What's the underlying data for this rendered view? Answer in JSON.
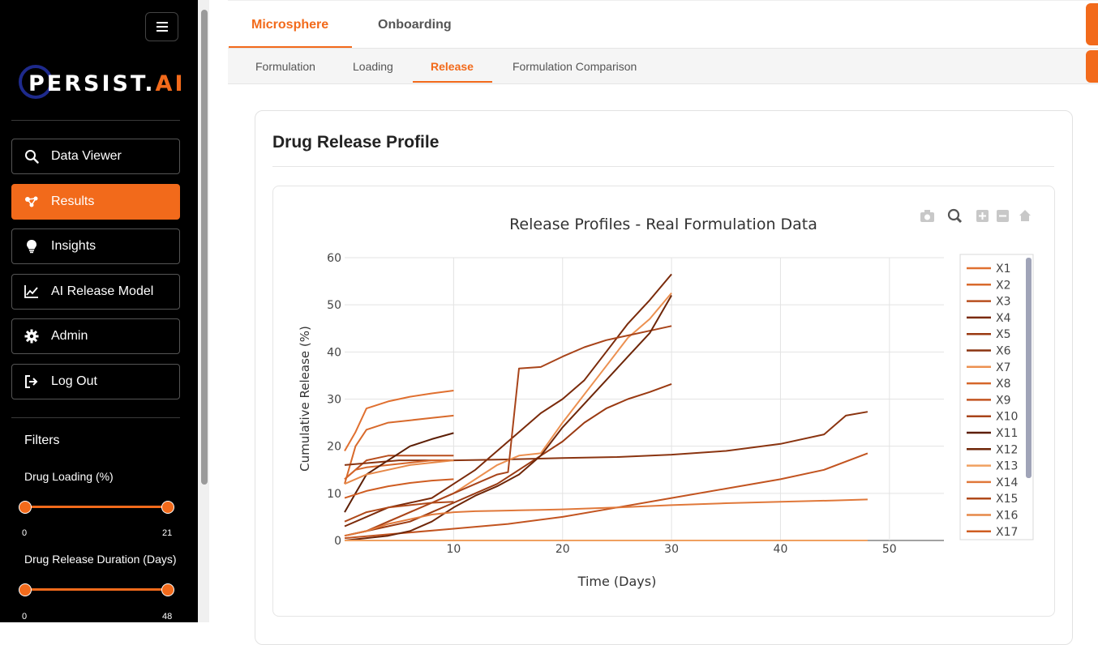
{
  "brand": {
    "name_main": "PERSIST.",
    "name_accent": "AI"
  },
  "sidebar": {
    "menu_icon": "hamburger-icon",
    "nav": [
      {
        "label": "Data Viewer",
        "icon": "search-icon"
      },
      {
        "label": "Results",
        "icon": "molecule-icon",
        "active": true
      },
      {
        "label": "Insights",
        "icon": "lightbulb-icon"
      },
      {
        "label": "AI Release Model",
        "icon": "line-chart-icon"
      },
      {
        "label": "Admin",
        "icon": "gear-icon"
      },
      {
        "label": "Log Out",
        "icon": "logout-icon"
      }
    ],
    "filters_title": "Filters",
    "filters": [
      {
        "label": "Drug Loading (%)",
        "min": "0",
        "max": "21"
      },
      {
        "label": "Drug Release Duration (Days)",
        "min": "0",
        "max": "48"
      }
    ]
  },
  "tabs_primary": [
    "Microsphere",
    "Onboarding"
  ],
  "tabs_secondary": [
    "Formulation",
    "Loading",
    "Release",
    "Formulation Comparison"
  ],
  "card": {
    "title": "Drug Release Profile"
  },
  "toolbar_icons": [
    "camera-icon",
    "zoom-icon",
    "zoom-in-icon",
    "zoom-out-icon",
    "home-icon"
  ],
  "colors": {
    "accent": "#f26a1b",
    "sidebar_bg": "#000000",
    "brand_ring": "#1e2a8c"
  },
  "chart_data": {
    "type": "line",
    "title": "Release Profiles - Real Formulation Data",
    "xlabel": "Time (Days)",
    "ylabel": "Cumulative Release (%)",
    "xlim": [
      0,
      55
    ],
    "ylim": [
      0,
      60
    ],
    "xticks": [
      10,
      20,
      30,
      40,
      50
    ],
    "yticks": [
      0,
      10,
      20,
      30,
      40,
      50,
      60
    ],
    "grid": true,
    "legend_position": "right",
    "series": [
      {
        "name": "X1",
        "color": "#e07030",
        "x": [
          0,
          1,
          2,
          4,
          6,
          8,
          10
        ],
        "y": [
          19,
          23,
          28,
          29.5,
          30.5,
          31.2,
          31.8
        ]
      },
      {
        "name": "X2",
        "color": "#d86a2c",
        "x": [
          0,
          1,
          2,
          4,
          6,
          8,
          10
        ],
        "y": [
          12,
          20,
          23.5,
          25,
          25.5,
          26,
          26.5
        ]
      },
      {
        "name": "X3",
        "color": "#b84f1f",
        "x": [
          0,
          1,
          2,
          4,
          6,
          8,
          10
        ],
        "y": [
          13,
          15,
          17,
          18,
          18,
          18,
          18
        ]
      },
      {
        "name": "X4",
        "color": "#7a2a0a",
        "x": [
          0,
          2,
          4,
          6,
          8,
          10,
          12,
          14,
          16,
          18,
          20,
          22,
          24,
          26,
          28,
          30
        ],
        "y": [
          3,
          5,
          7,
          8,
          9,
          12,
          15,
          19,
          23,
          27,
          30,
          34,
          40,
          46,
          51,
          56.5
        ]
      },
      {
        "name": "X5",
        "color": "#9a3a12",
        "x": [
          0,
          2,
          4,
          6,
          8,
          10,
          12,
          14,
          16,
          18,
          20,
          22,
          24,
          26,
          28,
          30
        ],
        "y": [
          1,
          2,
          3,
          4,
          6,
          8,
          10,
          12,
          15,
          18,
          21,
          25,
          28,
          30,
          31.5,
          33.2
        ]
      },
      {
        "name": "X6",
        "color": "#8a3410",
        "x": [
          0,
          5,
          10,
          15,
          20,
          25,
          30,
          35,
          40,
          44,
          46,
          48
        ],
        "y": [
          16,
          17,
          17,
          17.2,
          17.5,
          17.7,
          18.2,
          19,
          20.5,
          22.5,
          26.5,
          27.3
        ]
      },
      {
        "name": "X7",
        "color": "#ec9050",
        "x": [
          0,
          2,
          4,
          6,
          8,
          10,
          12,
          14,
          16,
          18,
          20,
          22,
          24,
          26,
          28,
          30
        ],
        "y": [
          1,
          2,
          4,
          6,
          8,
          10,
          13,
          16,
          18,
          18.5,
          25,
          31,
          37,
          43,
          47,
          52.5
        ]
      },
      {
        "name": "X8",
        "color": "#d5662a",
        "x": [
          0,
          1,
          2,
          4,
          6,
          8,
          10
        ],
        "y": [
          13,
          15,
          15.5,
          16,
          16.5,
          17,
          17
        ]
      },
      {
        "name": "X9",
        "color": "#c25420",
        "x": [
          0,
          5,
          10,
          15,
          20,
          25,
          30,
          35,
          40,
          44,
          48
        ],
        "y": [
          0.5,
          1.5,
          2.5,
          3.5,
          5,
          7,
          9,
          11,
          13,
          15,
          18.5
        ]
      },
      {
        "name": "X10",
        "color": "#a8441a",
        "x": [
          0,
          2,
          4,
          6,
          8,
          10,
          12,
          14,
          15,
          16,
          18,
          20,
          22,
          24,
          26,
          28,
          30
        ],
        "y": [
          1,
          2,
          4,
          6,
          8,
          10,
          12,
          14,
          14.5,
          36.5,
          36.8,
          39,
          41,
          42.5,
          43.5,
          44.5,
          45.5
        ]
      },
      {
        "name": "X11",
        "color": "#5c1e05",
        "x": [
          0,
          1,
          2,
          4,
          6,
          8,
          10
        ],
        "y": [
          6,
          10,
          14,
          17,
          20,
          21.5,
          22.8
        ]
      },
      {
        "name": "X12",
        "color": "#6e2608",
        "x": [
          0,
          2,
          4,
          6,
          8,
          10,
          12,
          14,
          16,
          18,
          20,
          22,
          24,
          26,
          28,
          30
        ],
        "y": [
          0,
          0.5,
          1,
          2,
          4,
          7,
          9.5,
          11.5,
          14,
          18,
          24,
          29,
          34,
          39,
          44,
          52
        ]
      },
      {
        "name": "X13",
        "color": "#f0a060",
        "x": [
          0,
          5,
          10,
          15,
          20,
          25,
          30,
          35,
          40,
          48
        ],
        "y": [
          0,
          0,
          0,
          0,
          0,
          0,
          0,
          0,
          0,
          0
        ]
      },
      {
        "name": "X14",
        "color": "#e0783a",
        "x": [
          0,
          2,
          4,
          6,
          8,
          10,
          12,
          14,
          16,
          18,
          20,
          25,
          30,
          35,
          40,
          45,
          48
        ],
        "y": [
          1,
          2,
          3.5,
          4.5,
          5.5,
          6,
          6.2,
          6.3,
          6.4,
          6.5,
          6.6,
          7,
          7.5,
          7.9,
          8.2,
          8.5,
          8.7
        ]
      },
      {
        "name": "X15",
        "color": "#b04a1a",
        "x": [
          0,
          2,
          4,
          6,
          8,
          10
        ],
        "y": [
          4,
          6,
          7,
          7.5,
          8,
          8.2
        ]
      },
      {
        "name": "X16",
        "color": "#e68848",
        "x": [
          0,
          2,
          4,
          6,
          8,
          10
        ],
        "y": [
          12,
          14,
          15,
          16,
          16.5,
          17
        ]
      },
      {
        "name": "X17",
        "color": "#cf5d22",
        "x": [
          0,
          2,
          4,
          6,
          8,
          10
        ],
        "y": [
          9,
          10.5,
          11.5,
          12.2,
          12.7,
          13
        ]
      }
    ]
  }
}
